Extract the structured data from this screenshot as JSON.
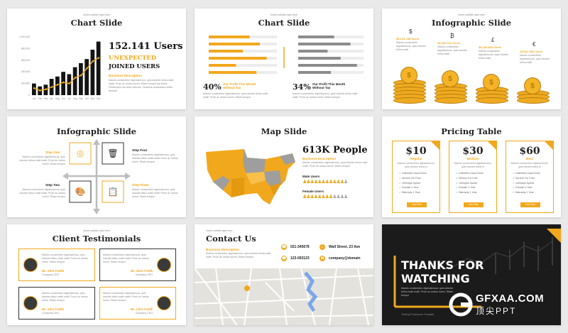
{
  "common": {
    "subtitle": "Insert subtitle right here",
    "lorem_short": "Mauris consectetur dignissimcus, quis lobortis tellus matti matti. Proin ac metus lorem. Etiam tempor",
    "lorem_long": "Mauris consectetur dignissimcus, quis lobortis tellus matti matti. Proin ac metus lorem. Etiam tempor dui tellus. Vestibulum nec ante ultricies. Vivamus consectetur tellus aenean"
  },
  "slide1": {
    "title": "Chart Slide",
    "headline": "152.141 Users",
    "line2": "UNEXPECTED",
    "line3": "JOINED USERS",
    "section": "Business Description",
    "months": [
      "Jan",
      "Feb",
      "Mar",
      "Apr",
      "May",
      "Jun",
      "Jul",
      "Aug",
      "Sep",
      "Oct",
      "Nov",
      "Dec"
    ],
    "bar_values": [
      20,
      15,
      18,
      28,
      32,
      40,
      36,
      48,
      55,
      62,
      78,
      92
    ],
    "line_values": [
      12,
      8,
      10,
      14,
      18,
      22,
      20,
      30,
      34,
      46,
      58,
      64
    ],
    "y_ticks": [
      "1,000,000",
      "800,000",
      "600,000",
      "400,000",
      "200,000",
      "0"
    ]
  },
  "slide2": {
    "title": "Chart Slide",
    "left_pct": "40%",
    "left_label": "Our Profit This Month Without Tax",
    "right_pct": "34%",
    "right_label": "Our Profit This Month Without Tax",
    "left_values": [
      60,
      75,
      50,
      85,
      40,
      70
    ],
    "right_values": [
      55,
      80,
      45,
      65,
      90,
      50
    ]
  },
  "slide3": {
    "title": "Infographic Slide",
    "items": [
      {
        "currency": "$",
        "users": "58.124.785 Users",
        "coins": 6
      },
      {
        "currency": "₿",
        "users": "45.303.322 Users",
        "coins": 5
      },
      {
        "currency": "£",
        "users": "35.226.893 Users",
        "coins": 4
      },
      {
        "currency": "€",
        "users": "13.512.482 Users",
        "coins": 3
      }
    ]
  },
  "slide4": {
    "title": "Infographic Slide",
    "steps": [
      "Step One",
      "Step Two",
      "Step Three",
      "Step Four"
    ]
  },
  "slide5": {
    "title": "Map Slide",
    "headline": "613K People",
    "section": "Business Description",
    "male": "Male Users",
    "female": "Female Users"
  },
  "slide6": {
    "title": "Pricing Table",
    "plans": [
      {
        "price": "$10",
        "name": "Regular"
      },
      {
        "price": "$30",
        "name": "Medium"
      },
      {
        "price": "$60",
        "name": "Best"
      }
    ],
    "features": [
      "Unlimited Cloud Drive",
      "Service For Free",
      "100mbps Speed",
      "Domain 2 Year",
      "Warranty 1 Year"
    ],
    "button": "Get Plan"
  },
  "slide7": {
    "title": "Client Testimonials",
    "name": "Mr. John Fredik",
    "company": "Company CEO"
  },
  "slide8": {
    "title": "Contact Us",
    "section": "Business Description",
    "phone1": "021-345678",
    "phone2": "123-093123",
    "address": "Wall Street, 23 Ave",
    "email": "company@domain"
  },
  "slide9": {
    "line1": "THANKS FOR",
    "line2": "WATCHING",
    "small": "Mauris consectetur dignissimcus, quis lobortis tellus matti matti. Proin ac metus lorem. Etiam tempor",
    "template": "Trading Powerpoint Template"
  },
  "watermark": {
    "brand": "GFXAA.COM",
    "cn": "顶尖PPT"
  },
  "colors": {
    "accent": "#f2a81d",
    "dark": "#141414",
    "gray": "#9b9b9b"
  }
}
